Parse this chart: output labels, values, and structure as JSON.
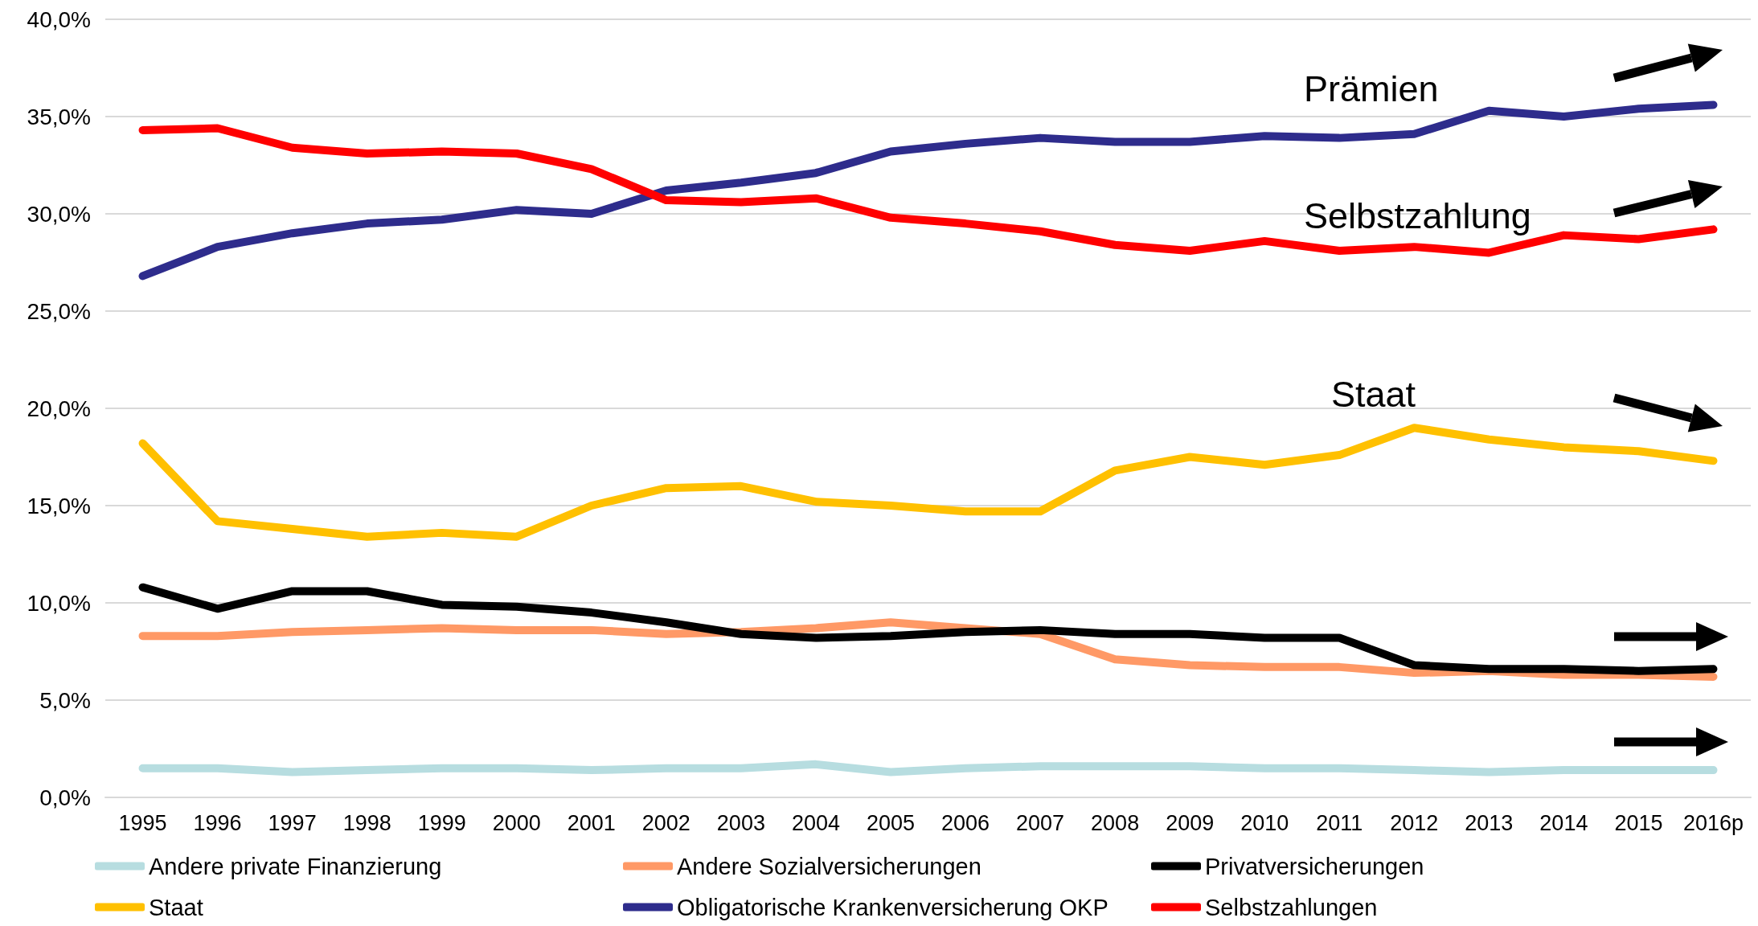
{
  "chart_data": {
    "type": "line",
    "categories": [
      "1995",
      "1996",
      "1997",
      "1998",
      "1999",
      "2000",
      "2001",
      "2002",
      "2003",
      "2004",
      "2005",
      "2006",
      "2007",
      "2008",
      "2009",
      "2010",
      "2011",
      "2012",
      "2013",
      "2014",
      "2015",
      "2016p"
    ],
    "series": [
      {
        "name": "Andere private Finanzierung",
        "color": "#b7dde0",
        "values": [
          1.5,
          1.5,
          1.3,
          1.4,
          1.5,
          1.5,
          1.4,
          1.5,
          1.5,
          1.7,
          1.3,
          1.5,
          1.6,
          1.6,
          1.6,
          1.5,
          1.5,
          1.4,
          1.3,
          1.4,
          1.4,
          1.4
        ]
      },
      {
        "name": "Andere Sozialversicherungen",
        "color": "#ff9966",
        "values": [
          8.3,
          8.3,
          8.5,
          8.6,
          8.7,
          8.6,
          8.6,
          8.4,
          8.5,
          8.7,
          9.0,
          8.7,
          8.4,
          7.1,
          6.8,
          6.7,
          6.7,
          6.4,
          6.5,
          6.3,
          6.3,
          6.2
        ]
      },
      {
        "name": "Privatversicherungen",
        "color": "#000000",
        "values": [
          10.8,
          9.7,
          10.6,
          10.6,
          9.9,
          9.8,
          9.5,
          9.0,
          8.4,
          8.2,
          8.3,
          8.5,
          8.6,
          8.4,
          8.4,
          8.2,
          8.2,
          6.8,
          6.6,
          6.6,
          6.5,
          6.6
        ]
      },
      {
        "name": "Staat",
        "color": "#ffc000",
        "values": [
          18.2,
          14.2,
          13.8,
          13.4,
          13.6,
          13.4,
          15.0,
          15.9,
          16.0,
          15.2,
          15.0,
          14.7,
          14.7,
          16.8,
          17.5,
          17.1,
          17.6,
          19.0,
          18.4,
          18.0,
          17.8,
          17.3
        ]
      },
      {
        "name": "Obligatorische Krankenversicherung OKP",
        "color": "#2e2c8c",
        "values": [
          26.8,
          28.3,
          29.0,
          29.5,
          29.7,
          30.2,
          30.0,
          31.2,
          31.6,
          32.1,
          33.2,
          33.6,
          33.9,
          33.7,
          33.7,
          34.0,
          33.9,
          34.1,
          35.3,
          35.0,
          35.4,
          35.6
        ]
      },
      {
        "name": "Selbstzahlungen",
        "color": "#ff0000",
        "values": [
          34.3,
          34.4,
          33.4,
          33.1,
          33.2,
          33.1,
          32.3,
          30.7,
          30.6,
          30.8,
          29.8,
          29.5,
          29.1,
          28.4,
          28.1,
          28.6,
          28.1,
          28.3,
          28.0,
          28.9,
          28.7,
          29.2
        ]
      }
    ],
    "ylim": [
      0,
      40
    ],
    "yticks": [
      {
        "value": 0,
        "label": "0,0%"
      },
      {
        "value": 5,
        "label": "5,0%"
      },
      {
        "value": 10,
        "label": "10,0%"
      },
      {
        "value": 15,
        "label": "15,0%"
      },
      {
        "value": 20,
        "label": "20,0%"
      },
      {
        "value": 25,
        "label": "25,0%"
      },
      {
        "value": 30,
        "label": "30,0%"
      },
      {
        "value": 35,
        "label": "35,0%"
      },
      {
        "value": 40,
        "label": "40,0%"
      }
    ],
    "grid": "y",
    "legend": "bottom",
    "marker": "none",
    "line_style": "solid",
    "annotations": [
      "Prämien",
      "Selbstzahlung",
      "Staat"
    ]
  }
}
